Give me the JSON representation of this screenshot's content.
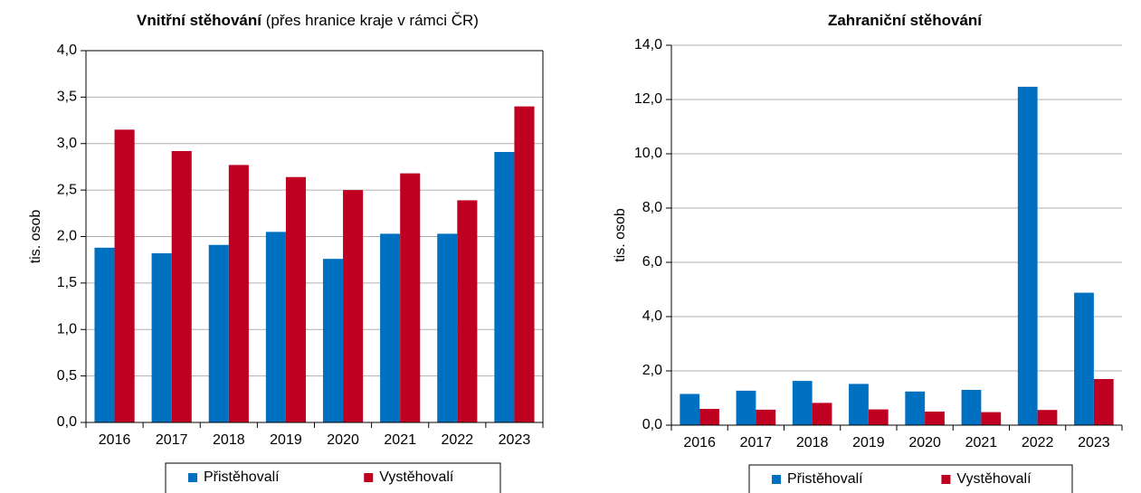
{
  "chart_data": [
    {
      "type": "bar",
      "title": "Vnitřní stěhování",
      "subtitle": "(přes hranice kraje v rámci ČR)",
      "y_label": "tis. osob",
      "categories": [
        "2016",
        "2017",
        "2018",
        "2019",
        "2020",
        "2021",
        "2022",
        "2023"
      ],
      "series": [
        {
          "name": "Přistěhovalí",
          "color": "#0070c0",
          "values": [
            1.88,
            1.82,
            1.91,
            2.05,
            1.76,
            2.03,
            2.03,
            2.91
          ]
        },
        {
          "name": "Vystěhovalí",
          "color": "#c00020",
          "values": [
            3.15,
            2.92,
            2.77,
            2.64,
            2.5,
            2.68,
            2.39,
            3.4
          ]
        }
      ],
      "ylim": [
        0,
        4
      ],
      "yticks": [
        {
          "value": 0,
          "label": "0,0"
        },
        {
          "value": 0.5,
          "label": "0,5"
        },
        {
          "value": 1,
          "label": "1,0"
        },
        {
          "value": 1.5,
          "label": "1,5"
        },
        {
          "value": 2,
          "label": "2,0"
        },
        {
          "value": 2.5,
          "label": "2,5"
        },
        {
          "value": 3,
          "label": "3,0"
        },
        {
          "value": 3.5,
          "label": "3,5"
        },
        {
          "value": 4,
          "label": "4,0"
        }
      ],
      "grid": true,
      "legend": "bottom"
    },
    {
      "type": "bar",
      "title": "Zahraniční stěhování",
      "y_label": "tis. osob",
      "categories": [
        "2016",
        "2017",
        "2018",
        "2019",
        "2020",
        "2021",
        "2022",
        "2023"
      ],
      "series": [
        {
          "name": "Přistěhovalí",
          "color": "#0070c0",
          "values": [
            1.15,
            1.27,
            1.63,
            1.52,
            1.24,
            1.3,
            12.47,
            4.88
          ]
        },
        {
          "name": "Vystěhovalí",
          "color": "#c00020",
          "values": [
            0.6,
            0.57,
            0.82,
            0.58,
            0.5,
            0.48,
            0.56,
            1.7
          ]
        }
      ],
      "ylim": [
        0,
        14
      ],
      "yticks": [
        {
          "value": 0,
          "label": "0,0"
        },
        {
          "value": 2,
          "label": "2,0"
        },
        {
          "value": 4,
          "label": "4,0"
        },
        {
          "value": 6,
          "label": "6,0"
        },
        {
          "value": 8,
          "label": "8,0"
        },
        {
          "value": 10,
          "label": "10,0"
        },
        {
          "value": 12,
          "label": "12,0"
        },
        {
          "value": 14,
          "label": "14,0"
        }
      ],
      "grid": true,
      "legend": "bottom"
    }
  ]
}
